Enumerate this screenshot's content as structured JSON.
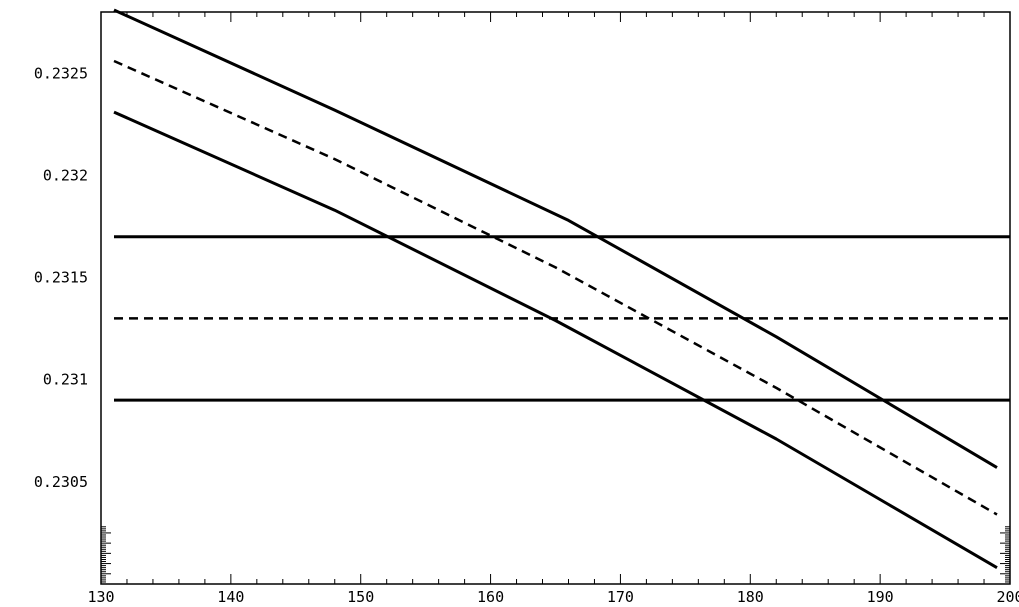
{
  "chart_data": {
    "type": "line",
    "title": "",
    "xlabel": "",
    "ylabel": "",
    "xlim": [
      130,
      200
    ],
    "ylim": [
      0.23,
      0.2328
    ],
    "grid": false,
    "x_ticks": [
      130,
      140,
      150,
      160,
      170,
      180,
      190,
      200
    ],
    "x_tick_labels": [
      "130",
      "140",
      "150",
      "160",
      "170",
      "180",
      "190",
      "200"
    ],
    "y_ticks": [
      0.2305,
      0.231,
      0.2315,
      0.232,
      0.2325
    ],
    "y_tick_labels": [
      "0.2305",
      "0.231",
      "0.2315",
      "0.232",
      "0.2325"
    ],
    "series": [
      {
        "style": "solid",
        "x": [
          131,
          148,
          166,
          182,
          199
        ],
        "y": [
          0.23281,
          0.23232,
          0.23178,
          0.23121,
          0.23057
        ]
      },
      {
        "style": "dashed",
        "x": [
          131,
          148,
          165,
          182,
          199
        ],
        "y": [
          0.23256,
          0.23208,
          0.23155,
          0.23096,
          0.23034
        ]
      },
      {
        "style": "solid",
        "x": [
          131,
          148,
          165,
          182,
          199
        ],
        "y": [
          0.23231,
          0.23183,
          0.23129,
          0.23071,
          0.23008
        ]
      },
      {
        "style": "solid",
        "x": [
          131,
          200
        ],
        "y": [
          0.2317,
          0.2317
        ]
      },
      {
        "style": "dashed",
        "x": [
          131,
          200
        ],
        "y": [
          0.2313,
          0.2313
        ]
      },
      {
        "style": "solid",
        "x": [
          131,
          200
        ],
        "y": [
          0.2309,
          0.2309
        ]
      }
    ]
  }
}
